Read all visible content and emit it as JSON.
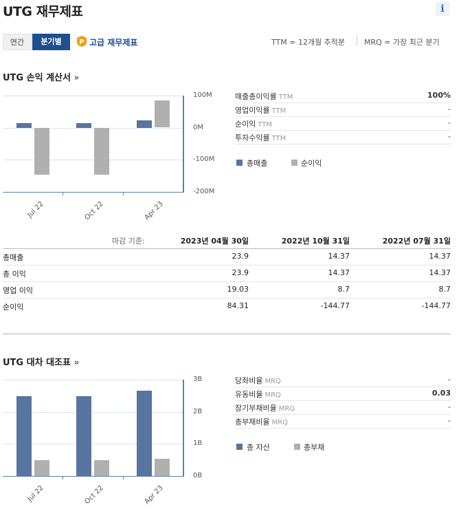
{
  "header": {
    "title": "UTG 재무제표",
    "info_icon": "i"
  },
  "tabs": {
    "annual": "연간",
    "quarterly": "분기별",
    "active": "quarterly"
  },
  "pro_link": {
    "label": "고급 재무제표",
    "icon": "pro-p-icon"
  },
  "legend_notes": {
    "ttm": "TTM = 12개월 추적분",
    "mrq": "MRQ = 가장 최근 분기"
  },
  "income": {
    "section_title": "UTG 손익 계산서",
    "more_arrow": "»",
    "ratios": [
      {
        "label": "매출총이익률",
        "tag": "TTM",
        "value": "100%",
        "bold": true
      },
      {
        "label": "영업이익률",
        "tag": "TTM",
        "value": "-"
      },
      {
        "label": "순이익",
        "tag": "TTM",
        "value": "-"
      },
      {
        "label": "투자수익률",
        "tag": "TTM",
        "value": "-"
      }
    ],
    "legend": {
      "series1": "총매출",
      "series2": "순이익"
    },
    "table": {
      "date_label": "마감 기준:",
      "dates": [
        "2023년 04월 30일",
        "2022년 10월 31일",
        "2022년 07월 31일"
      ],
      "rows": [
        {
          "label": "총매출",
          "values": [
            "23.9",
            "14.37",
            "14.37"
          ]
        },
        {
          "label": "총 이익",
          "values": [
            "23.9",
            "14.37",
            "14.37"
          ]
        },
        {
          "label": "영업 이익",
          "values": [
            "19.03",
            "8.7",
            "8.7"
          ]
        },
        {
          "label": "순이익",
          "values": [
            "84.31",
            "-144.77",
            "-144.77"
          ]
        }
      ]
    }
  },
  "balance": {
    "section_title": "UTG 대차 대조표",
    "more_arrow": "»",
    "ratios": [
      {
        "label": "당좌비율",
        "tag": "MRQ",
        "value": "-"
      },
      {
        "label": "유동비율",
        "tag": "MRQ",
        "value": "0.03",
        "bold": true
      },
      {
        "label": "장기부채비율",
        "tag": "MRQ",
        "value": "-"
      },
      {
        "label": "총부채비율",
        "tag": "MRQ",
        "value": "-"
      }
    ],
    "legend": {
      "series1": "총 자산",
      "series2": "총부채"
    }
  },
  "colors": {
    "series1": "#5874a0",
    "series2": "#b0b0b0",
    "active_tab": "#1d4f91"
  },
  "chart_data": [
    {
      "type": "bar",
      "categories": [
        "Jul 22",
        "Oct 22",
        "Apr 23"
      ],
      "series": [
        {
          "name": "총매출",
          "values": [
            14.37,
            14.37,
            23.9
          ]
        },
        {
          "name": "순이익",
          "values": [
            -144.77,
            -144.77,
            84.31
          ]
        }
      ],
      "yticks": [
        "100M",
        "0M",
        "-100M",
        "-200M"
      ],
      "ylim": [
        -200,
        100
      ],
      "grid": true,
      "legend_position": "bottom-right"
    },
    {
      "type": "bar",
      "categories": [
        "Jul 22",
        "Oct 22",
        "Apr 23"
      ],
      "series": [
        {
          "name": "총 자산",
          "values": [
            2.48,
            2.48,
            2.66
          ]
        },
        {
          "name": "총부채",
          "values": [
            0.5,
            0.5,
            0.53
          ]
        }
      ],
      "yticks": [
        "3B",
        "2B",
        "1B",
        "0B"
      ],
      "ylim": [
        0,
        3
      ],
      "grid": true,
      "legend_position": "bottom-right"
    }
  ]
}
